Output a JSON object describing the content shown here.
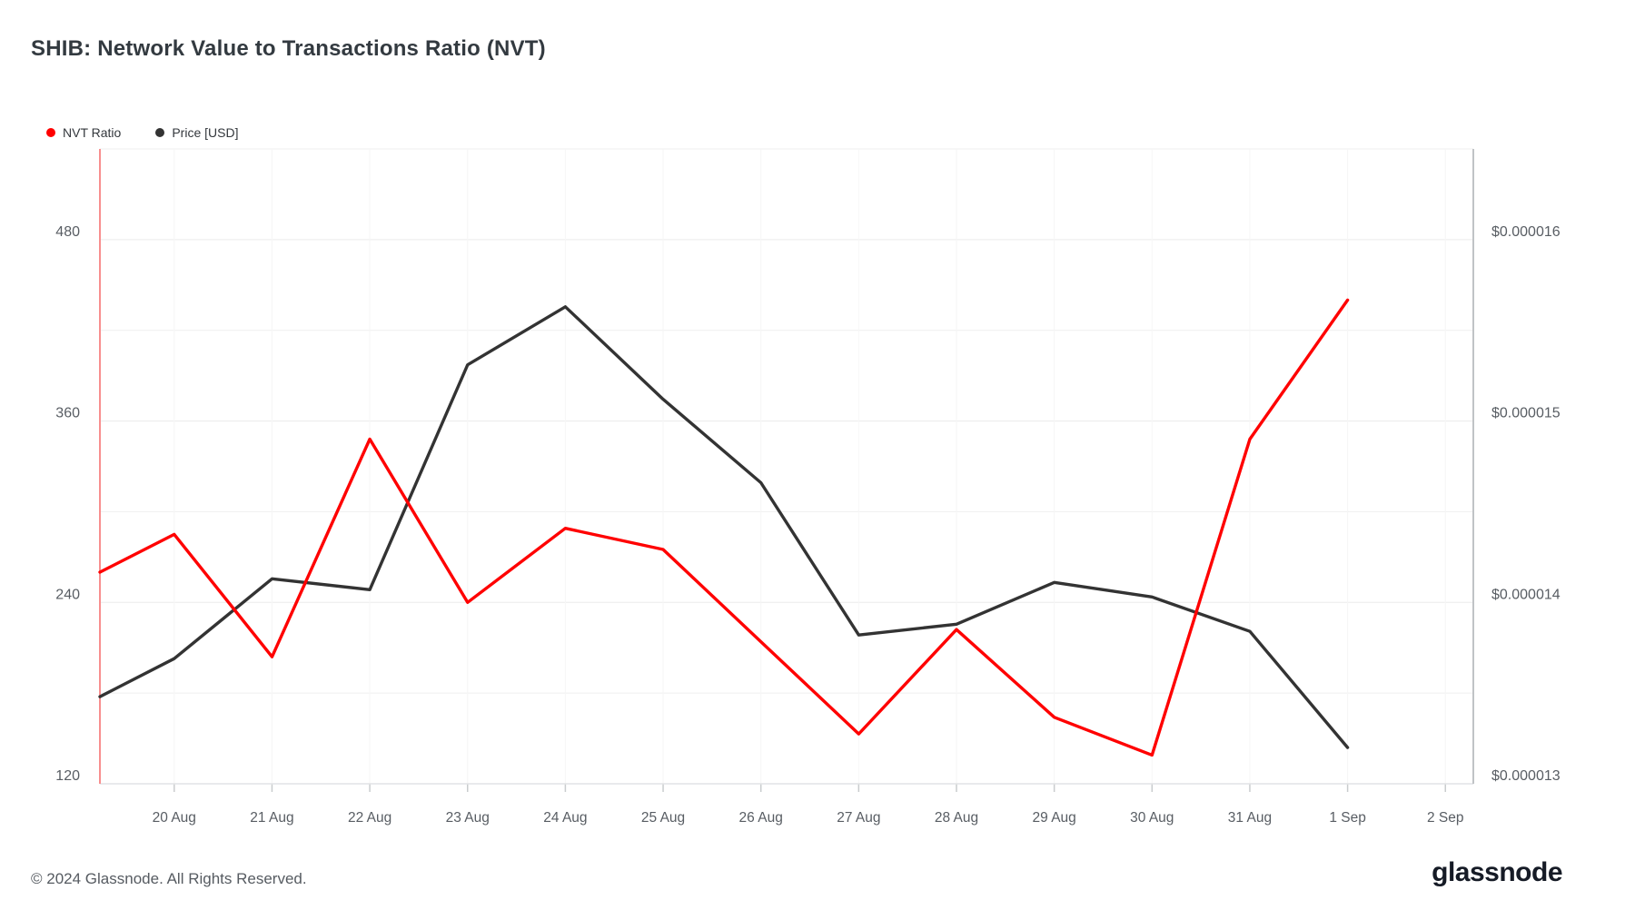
{
  "page": {
    "title": "SHIB: Network Value to Transactions Ratio (NVT)"
  },
  "legend": [
    {
      "label": "NVT Ratio",
      "color": "#ff0000"
    },
    {
      "label": "Price [USD]",
      "color": "#333333"
    }
  ],
  "footer": {
    "copyright": "© 2024 Glassnode. All Rights Reserved.",
    "logo_text": "glassnode"
  },
  "chart_data": {
    "type": "line",
    "title": "SHIB: Network Value to Transactions Ratio (NVT)",
    "categories": [
      "20 Aug",
      "21 Aug",
      "22 Aug",
      "23 Aug",
      "24 Aug",
      "25 Aug",
      "26 Aug",
      "27 Aug",
      "28 Aug",
      "29 Aug",
      "30 Aug",
      "31 Aug",
      "1 Sep",
      "2 Sep"
    ],
    "series": [
      {
        "name": "NVT Ratio",
        "axis": "left",
        "color": "#ff0000",
        "x": [
          -0.76,
          0,
          1,
          2,
          3,
          4,
          5,
          6,
          7,
          8,
          9,
          10,
          11,
          12
        ],
        "values": [
          260,
          285,
          204,
          348,
          240,
          289,
          275,
          214,
          153,
          222,
          164,
          139,
          348,
          440
        ]
      },
      {
        "name": "Price [USD]",
        "axis": "right",
        "color": "#333333",
        "x": [
          -0.76,
          0,
          1,
          2,
          3,
          4,
          5,
          6,
          7,
          8,
          9,
          10,
          11,
          12
        ],
        "values": [
          1.348e-05,
          1.369e-05,
          1.413e-05,
          1.407e-05,
          1.531e-05,
          1.563e-05,
          1.512e-05,
          1.466e-05,
          1.382e-05,
          1.388e-05,
          1.411e-05,
          1.403e-05,
          1.384e-05,
          1.32e-05
        ]
      }
    ],
    "y_left": {
      "ticks": [
        480,
        360,
        240,
        120
      ],
      "minor_ticks": [
        540,
        420,
        300,
        180
      ],
      "range": [
        120,
        540
      ],
      "axis_line_color": "#f88f8f"
    },
    "y_right": {
      "tick_labels": [
        "$0.000016",
        "$0.000015",
        "$0.000014",
        "$0.000013"
      ],
      "ticks_micro": [
        16,
        15,
        14,
        13
      ],
      "range_micro": [
        13,
        16.5
      ],
      "axis_line_color": "#c0c3c6"
    },
    "grid": true,
    "legend_position": "top-left"
  }
}
